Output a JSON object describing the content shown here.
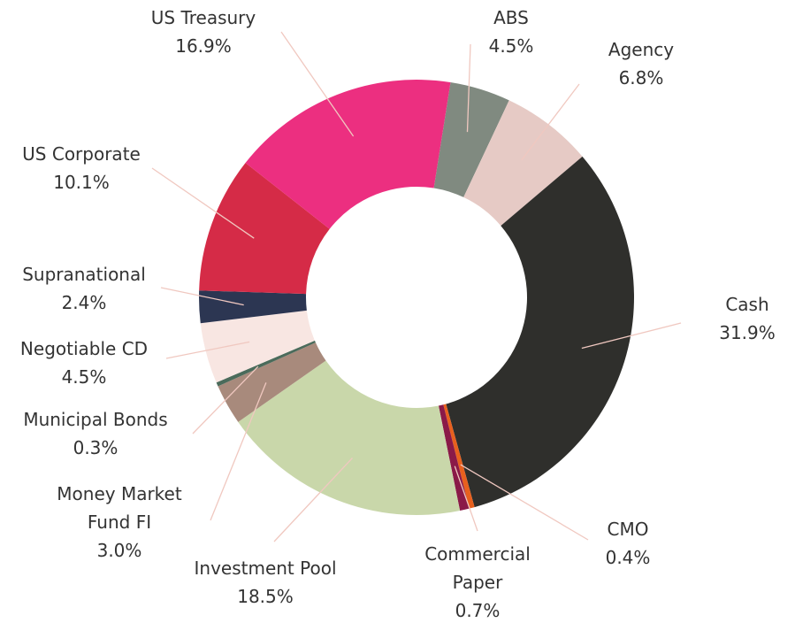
{
  "chart_data": {
    "type": "pie",
    "categories": [
      "ABS",
      "Agency",
      "Cash",
      "CMO",
      "Commercial Paper",
      "Investment Pool",
      "Money Market Fund FI",
      "Municipal Bonds",
      "Negotiable CD",
      "Supranational",
      "US Corporate",
      "US Treasury"
    ],
    "values": [
      4.5,
      6.8,
      31.9,
      0.4,
      0.7,
      18.5,
      3.0,
      0.3,
      4.5,
      2.4,
      10.1,
      16.9
    ],
    "value_labels": [
      "4.5%",
      "6.8%",
      "31.9%",
      "0.4%",
      "0.7%",
      "18.5%",
      "3.0%",
      "0.3%",
      "4.5%",
      "2.4%",
      "10.1%",
      "16.9%"
    ],
    "colors": [
      "#808a80",
      "#e6cac5",
      "#2f2f2c",
      "#e8601e",
      "#8a1a48",
      "#c9d7aa",
      "#a88a7c",
      "#4b6b5b",
      "#f8e6e2",
      "#2c3652",
      "#d52b47",
      "#ec2f80"
    ]
  }
}
